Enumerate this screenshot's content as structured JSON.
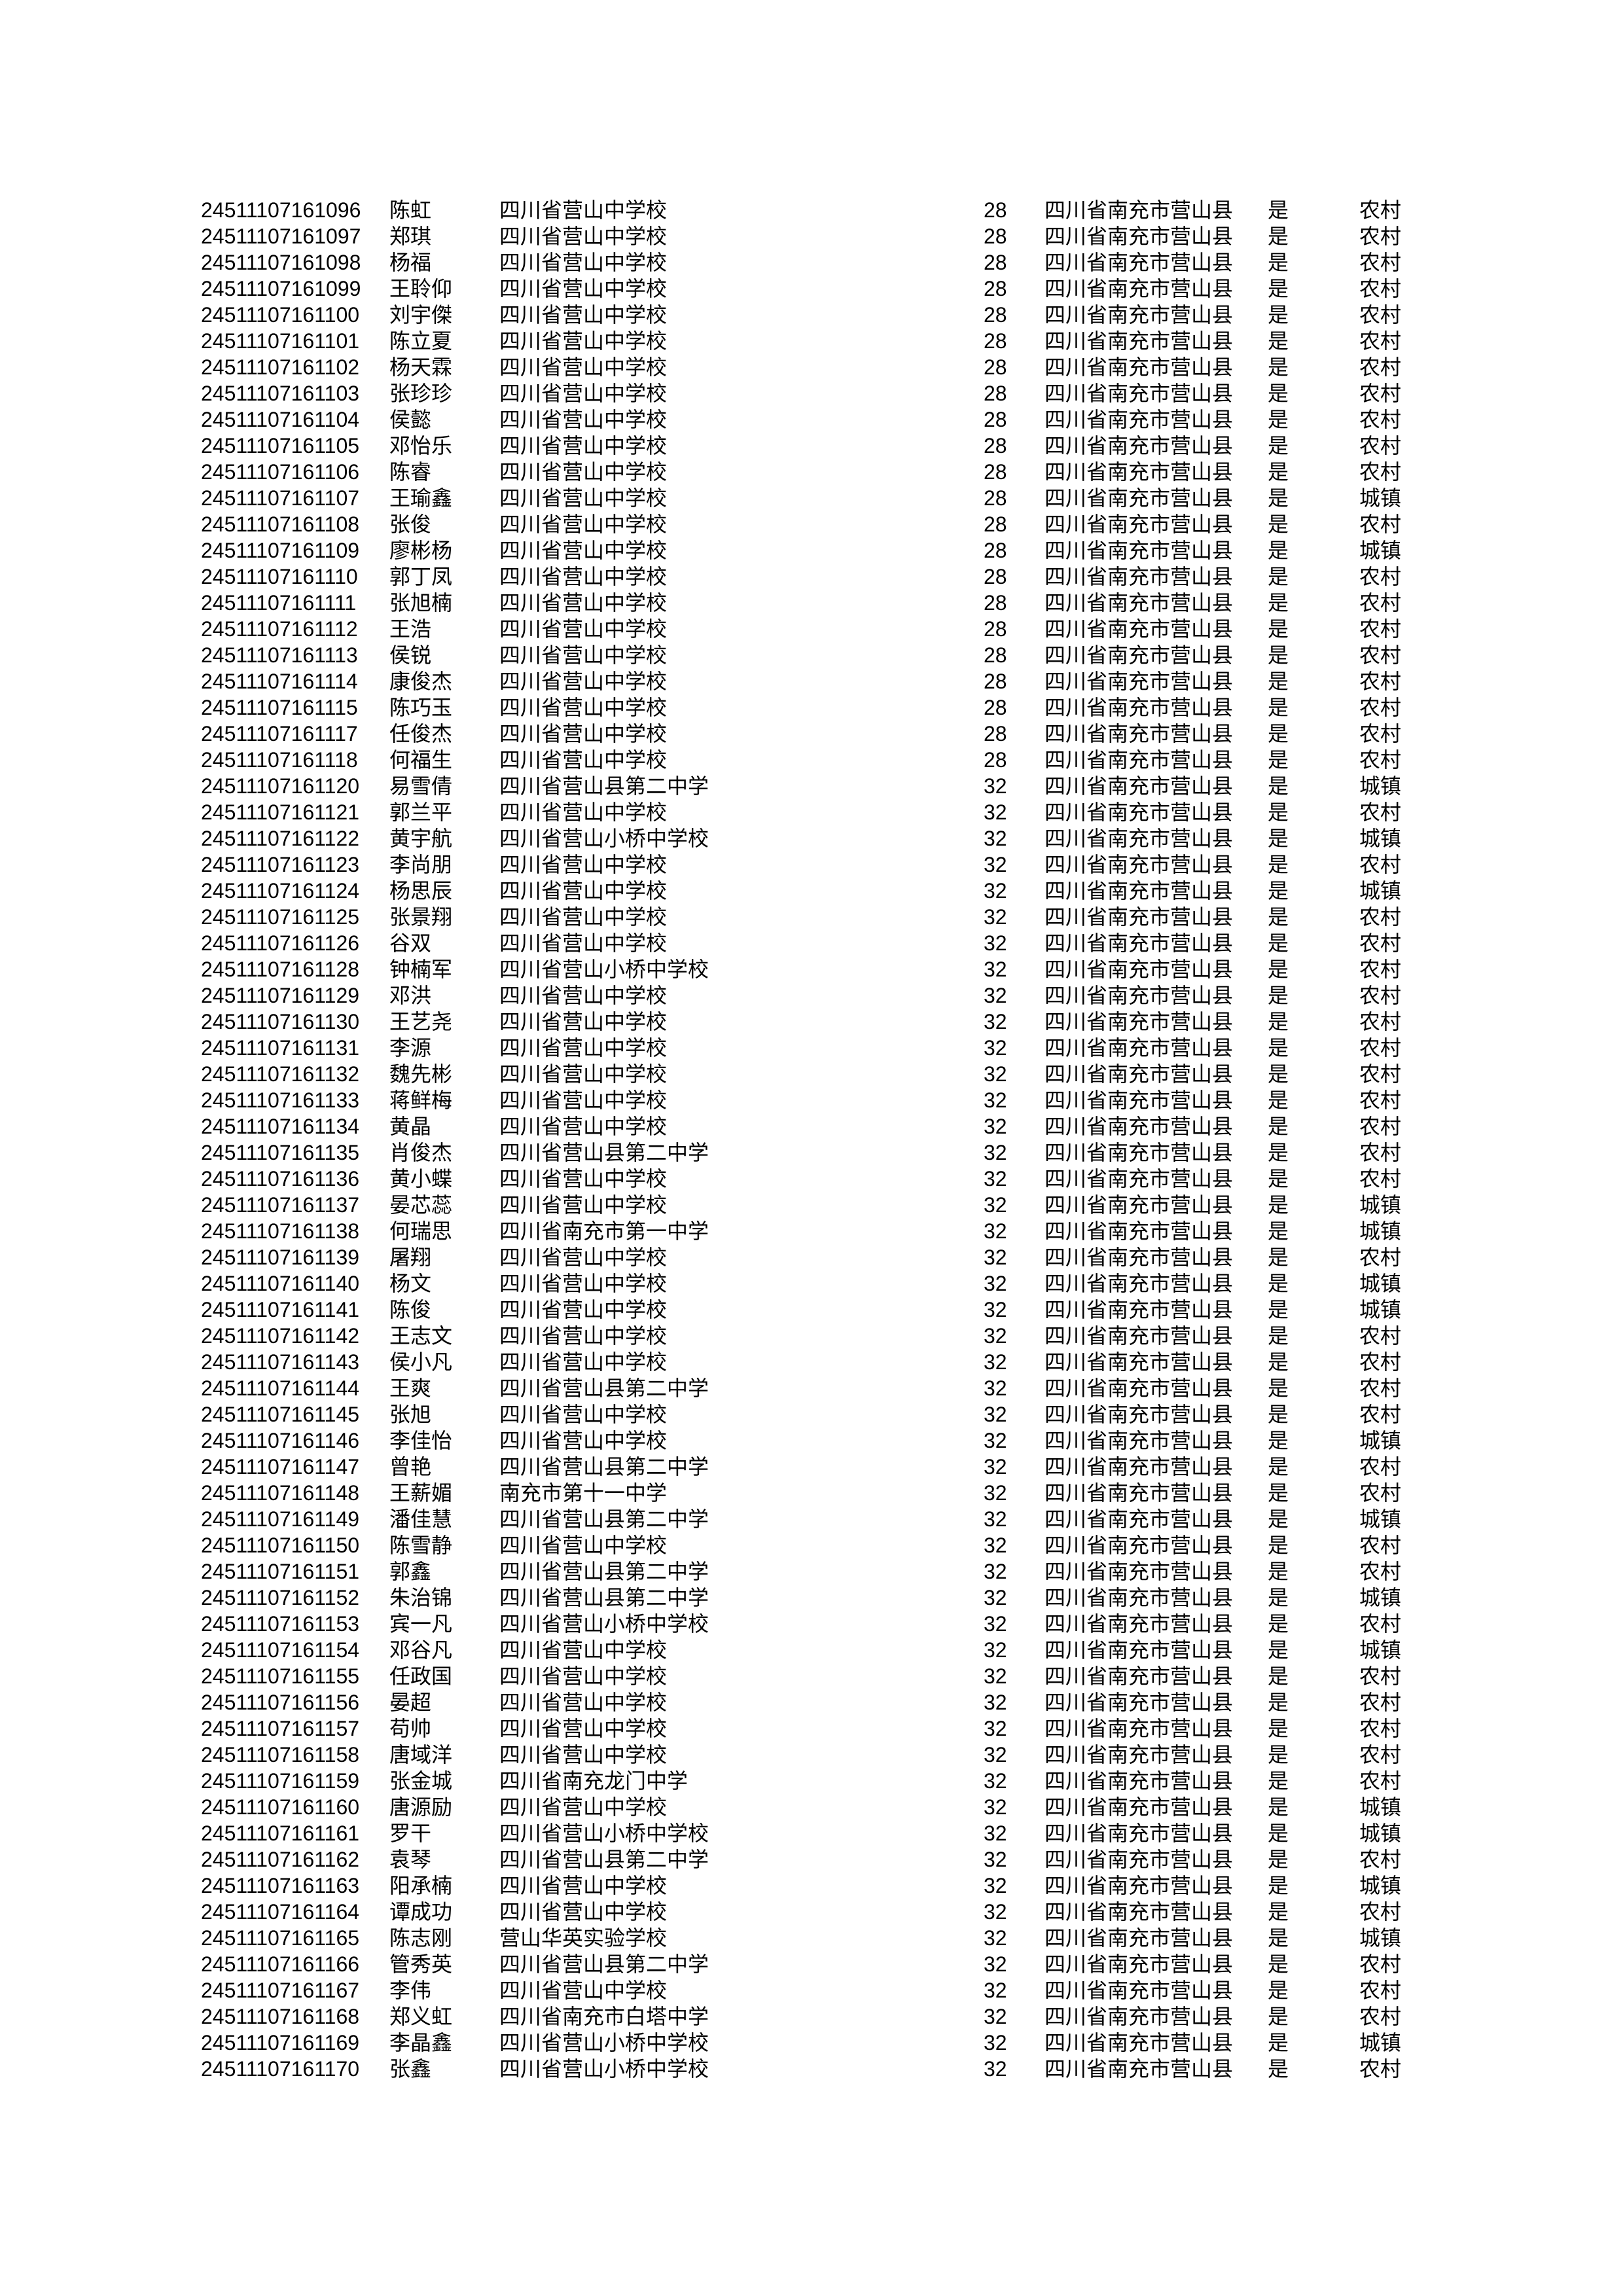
{
  "document": {
    "kind": "printed candidate roster page",
    "text_color": "#000000",
    "background_color": "#ffffff"
  },
  "table": {
    "repeated_values": {
      "district": "四川省南充市营山县",
      "flag": "是",
      "residence_rural": "农村",
      "residence_urban": "城镇"
    },
    "rows": [
      {
        "id": "24511107161096",
        "name": "陈虹",
        "school": "四川省营山中学校",
        "num": "28",
        "district": "四川省南充市营山县",
        "flag": "是",
        "type": "农村"
      },
      {
        "id": "24511107161097",
        "name": "郑琪",
        "school": "四川省营山中学校",
        "num": "28",
        "district": "四川省南充市营山县",
        "flag": "是",
        "type": "农村"
      },
      {
        "id": "24511107161098",
        "name": "杨福",
        "school": "四川省营山中学校",
        "num": "28",
        "district": "四川省南充市营山县",
        "flag": "是",
        "type": "农村"
      },
      {
        "id": "24511107161099",
        "name": "王聆仰",
        "school": "四川省营山中学校",
        "num": "28",
        "district": "四川省南充市营山县",
        "flag": "是",
        "type": "农村"
      },
      {
        "id": "24511107161100",
        "name": "刘宇傑",
        "school": "四川省营山中学校",
        "num": "28",
        "district": "四川省南充市营山县",
        "flag": "是",
        "type": "农村"
      },
      {
        "id": "24511107161101",
        "name": "陈立夏",
        "school": "四川省营山中学校",
        "num": "28",
        "district": "四川省南充市营山县",
        "flag": "是",
        "type": "农村"
      },
      {
        "id": "24511107161102",
        "name": "杨天霖",
        "school": "四川省营山中学校",
        "num": "28",
        "district": "四川省南充市营山县",
        "flag": "是",
        "type": "农村"
      },
      {
        "id": "24511107161103",
        "name": "张珍珍",
        "school": "四川省营山中学校",
        "num": "28",
        "district": "四川省南充市营山县",
        "flag": "是",
        "type": "农村"
      },
      {
        "id": "24511107161104",
        "name": "侯懿",
        "school": "四川省营山中学校",
        "num": "28",
        "district": "四川省南充市营山县",
        "flag": "是",
        "type": "农村"
      },
      {
        "id": "24511107161105",
        "name": "邓怡乐",
        "school": "四川省营山中学校",
        "num": "28",
        "district": "四川省南充市营山县",
        "flag": "是",
        "type": "农村"
      },
      {
        "id": "24511107161106",
        "name": "陈睿",
        "school": "四川省营山中学校",
        "num": "28",
        "district": "四川省南充市营山县",
        "flag": "是",
        "type": "农村"
      },
      {
        "id": "24511107161107",
        "name": "王瑜鑫",
        "school": "四川省营山中学校",
        "num": "28",
        "district": "四川省南充市营山县",
        "flag": "是",
        "type": "城镇"
      },
      {
        "id": "24511107161108",
        "name": "张俊",
        "school": "四川省营山中学校",
        "num": "28",
        "district": "四川省南充市营山县",
        "flag": "是",
        "type": "农村"
      },
      {
        "id": "24511107161109",
        "name": "廖彬杨",
        "school": "四川省营山中学校",
        "num": "28",
        "district": "四川省南充市营山县",
        "flag": "是",
        "type": "城镇"
      },
      {
        "id": "24511107161110",
        "name": "郭丁凤",
        "school": "四川省营山中学校",
        "num": "28",
        "district": "四川省南充市营山县",
        "flag": "是",
        "type": "农村"
      },
      {
        "id": "24511107161111",
        "name": "张旭楠",
        "school": "四川省营山中学校",
        "num": "28",
        "district": "四川省南充市营山县",
        "flag": "是",
        "type": "农村"
      },
      {
        "id": "24511107161112",
        "name": "王浩",
        "school": "四川省营山中学校",
        "num": "28",
        "district": "四川省南充市营山县",
        "flag": "是",
        "type": "农村"
      },
      {
        "id": "24511107161113",
        "name": "侯锐",
        "school": "四川省营山中学校",
        "num": "28",
        "district": "四川省南充市营山县",
        "flag": "是",
        "type": "农村"
      },
      {
        "id": "24511107161114",
        "name": "康俊杰",
        "school": "四川省营山中学校",
        "num": "28",
        "district": "四川省南充市营山县",
        "flag": "是",
        "type": "农村"
      },
      {
        "id": "24511107161115",
        "name": "陈巧玉",
        "school": "四川省营山中学校",
        "num": "28",
        "district": "四川省南充市营山县",
        "flag": "是",
        "type": "农村"
      },
      {
        "id": "24511107161117",
        "name": "任俊杰",
        "school": "四川省营山中学校",
        "num": "28",
        "district": "四川省南充市营山县",
        "flag": "是",
        "type": "农村"
      },
      {
        "id": "24511107161118",
        "name": "何福生",
        "school": "四川省营山中学校",
        "num": "28",
        "district": "四川省南充市营山县",
        "flag": "是",
        "type": "农村"
      },
      {
        "id": "24511107161120",
        "name": "易雪倩",
        "school": "四川省营山县第二中学",
        "num": "32",
        "district": "四川省南充市营山县",
        "flag": "是",
        "type": "城镇"
      },
      {
        "id": "24511107161121",
        "name": "郭兰平",
        "school": "四川省营山中学校",
        "num": "32",
        "district": "四川省南充市营山县",
        "flag": "是",
        "type": "农村"
      },
      {
        "id": "24511107161122",
        "name": "黄宇航",
        "school": "四川省营山小桥中学校",
        "num": "32",
        "district": "四川省南充市营山县",
        "flag": "是",
        "type": "城镇"
      },
      {
        "id": "24511107161123",
        "name": "李尚朋",
        "school": "四川省营山中学校",
        "num": "32",
        "district": "四川省南充市营山县",
        "flag": "是",
        "type": "农村"
      },
      {
        "id": "24511107161124",
        "name": "杨思辰",
        "school": "四川省营山中学校",
        "num": "32",
        "district": "四川省南充市营山县",
        "flag": "是",
        "type": "城镇"
      },
      {
        "id": "24511107161125",
        "name": "张景翔",
        "school": "四川省营山中学校",
        "num": "32",
        "district": "四川省南充市营山县",
        "flag": "是",
        "type": "农村"
      },
      {
        "id": "24511107161126",
        "name": "谷双",
        "school": "四川省营山中学校",
        "num": "32",
        "district": "四川省南充市营山县",
        "flag": "是",
        "type": "农村"
      },
      {
        "id": "24511107161128",
        "name": "钟楠军",
        "school": "四川省营山小桥中学校",
        "num": "32",
        "district": "四川省南充市营山县",
        "flag": "是",
        "type": "农村"
      },
      {
        "id": "24511107161129",
        "name": "邓洪",
        "school": "四川省营山中学校",
        "num": "32",
        "district": "四川省南充市营山县",
        "flag": "是",
        "type": "农村"
      },
      {
        "id": "24511107161130",
        "name": "王艺尧",
        "school": "四川省营山中学校",
        "num": "32",
        "district": "四川省南充市营山县",
        "flag": "是",
        "type": "农村"
      },
      {
        "id": "24511107161131",
        "name": "李源",
        "school": "四川省营山中学校",
        "num": "32",
        "district": "四川省南充市营山县",
        "flag": "是",
        "type": "农村"
      },
      {
        "id": "24511107161132",
        "name": "魏先彬",
        "school": "四川省营山中学校",
        "num": "32",
        "district": "四川省南充市营山县",
        "flag": "是",
        "type": "农村"
      },
      {
        "id": "24511107161133",
        "name": "蒋鲜梅",
        "school": "四川省营山中学校",
        "num": "32",
        "district": "四川省南充市营山县",
        "flag": "是",
        "type": "农村"
      },
      {
        "id": "24511107161134",
        "name": "黄晶",
        "school": "四川省营山中学校",
        "num": "32",
        "district": "四川省南充市营山县",
        "flag": "是",
        "type": "农村"
      },
      {
        "id": "24511107161135",
        "name": "肖俊杰",
        "school": "四川省营山县第二中学",
        "num": "32",
        "district": "四川省南充市营山县",
        "flag": "是",
        "type": "农村"
      },
      {
        "id": "24511107161136",
        "name": "黄小蝶",
        "school": "四川省营山中学校",
        "num": "32",
        "district": "四川省南充市营山县",
        "flag": "是",
        "type": "农村"
      },
      {
        "id": "24511107161137",
        "name": "晏芯蕊",
        "school": "四川省营山中学校",
        "num": "32",
        "district": "四川省南充市营山县",
        "flag": "是",
        "type": "城镇"
      },
      {
        "id": "24511107161138",
        "name": "何瑞思",
        "school": "四川省南充市第一中学",
        "num": "32",
        "district": "四川省南充市营山县",
        "flag": "是",
        "type": "城镇"
      },
      {
        "id": "24511107161139",
        "name": "屠翔",
        "school": "四川省营山中学校",
        "num": "32",
        "district": "四川省南充市营山县",
        "flag": "是",
        "type": "农村"
      },
      {
        "id": "24511107161140",
        "name": "杨文",
        "school": "四川省营山中学校",
        "num": "32",
        "district": "四川省南充市营山县",
        "flag": "是",
        "type": "城镇"
      },
      {
        "id": "24511107161141",
        "name": "陈俊",
        "school": "四川省营山中学校",
        "num": "32",
        "district": "四川省南充市营山县",
        "flag": "是",
        "type": "城镇"
      },
      {
        "id": "24511107161142",
        "name": "王志文",
        "school": "四川省营山中学校",
        "num": "32",
        "district": "四川省南充市营山县",
        "flag": "是",
        "type": "农村"
      },
      {
        "id": "24511107161143",
        "name": "侯小凡",
        "school": "四川省营山中学校",
        "num": "32",
        "district": "四川省南充市营山县",
        "flag": "是",
        "type": "农村"
      },
      {
        "id": "24511107161144",
        "name": "王爽",
        "school": "四川省营山县第二中学",
        "num": "32",
        "district": "四川省南充市营山县",
        "flag": "是",
        "type": "农村"
      },
      {
        "id": "24511107161145",
        "name": "张旭",
        "school": "四川省营山中学校",
        "num": "32",
        "district": "四川省南充市营山县",
        "flag": "是",
        "type": "农村"
      },
      {
        "id": "24511107161146",
        "name": "李佳怡",
        "school": "四川省营山中学校",
        "num": "32",
        "district": "四川省南充市营山县",
        "flag": "是",
        "type": "城镇"
      },
      {
        "id": "24511107161147",
        "name": "曾艳",
        "school": "四川省营山县第二中学",
        "num": "32",
        "district": "四川省南充市营山县",
        "flag": "是",
        "type": "农村"
      },
      {
        "id": "24511107161148",
        "name": "王薪媚",
        "school": "南充市第十一中学",
        "num": "32",
        "district": "四川省南充市营山县",
        "flag": "是",
        "type": "农村"
      },
      {
        "id": "24511107161149",
        "name": "潘佳慧",
        "school": "四川省营山县第二中学",
        "num": "32",
        "district": "四川省南充市营山县",
        "flag": "是",
        "type": "城镇"
      },
      {
        "id": "24511107161150",
        "name": "陈雪静",
        "school": "四川省营山中学校",
        "num": "32",
        "district": "四川省南充市营山县",
        "flag": "是",
        "type": "农村"
      },
      {
        "id": "24511107161151",
        "name": "郭鑫",
        "school": "四川省营山县第二中学",
        "num": "32",
        "district": "四川省南充市营山县",
        "flag": "是",
        "type": "农村"
      },
      {
        "id": "24511107161152",
        "name": "朱治锦",
        "school": "四川省营山县第二中学",
        "num": "32",
        "district": "四川省南充市营山县",
        "flag": "是",
        "type": "城镇"
      },
      {
        "id": "24511107161153",
        "name": "宾一凡",
        "school": "四川省营山小桥中学校",
        "num": "32",
        "district": "四川省南充市营山县",
        "flag": "是",
        "type": "农村"
      },
      {
        "id": "24511107161154",
        "name": "邓谷凡",
        "school": "四川省营山中学校",
        "num": "32",
        "district": "四川省南充市营山县",
        "flag": "是",
        "type": "城镇"
      },
      {
        "id": "24511107161155",
        "name": "任政国",
        "school": "四川省营山中学校",
        "num": "32",
        "district": "四川省南充市营山县",
        "flag": "是",
        "type": "农村"
      },
      {
        "id": "24511107161156",
        "name": "晏超",
        "school": "四川省营山中学校",
        "num": "32",
        "district": "四川省南充市营山县",
        "flag": "是",
        "type": "农村"
      },
      {
        "id": "24511107161157",
        "name": "苟帅",
        "school": "四川省营山中学校",
        "num": "32",
        "district": "四川省南充市营山县",
        "flag": "是",
        "type": "农村"
      },
      {
        "id": "24511107161158",
        "name": "唐域洋",
        "school": "四川省营山中学校",
        "num": "32",
        "district": "四川省南充市营山县",
        "flag": "是",
        "type": "农村"
      },
      {
        "id": "24511107161159",
        "name": "张金城",
        "school": "四川省南充龙门中学",
        "num": "32",
        "district": "四川省南充市营山县",
        "flag": "是",
        "type": "农村"
      },
      {
        "id": "24511107161160",
        "name": "唐源励",
        "school": "四川省营山中学校",
        "num": "32",
        "district": "四川省南充市营山县",
        "flag": "是",
        "type": "城镇"
      },
      {
        "id": "24511107161161",
        "name": "罗干",
        "school": "四川省营山小桥中学校",
        "num": "32",
        "district": "四川省南充市营山县",
        "flag": "是",
        "type": "城镇"
      },
      {
        "id": "24511107161162",
        "name": "袁琴",
        "school": "四川省营山县第二中学",
        "num": "32",
        "district": "四川省南充市营山县",
        "flag": "是",
        "type": "农村"
      },
      {
        "id": "24511107161163",
        "name": "阳承楠",
        "school": "四川省营山中学校",
        "num": "32",
        "district": "四川省南充市营山县",
        "flag": "是",
        "type": "城镇"
      },
      {
        "id": "24511107161164",
        "name": "谭成功",
        "school": "四川省营山中学校",
        "num": "32",
        "district": "四川省南充市营山县",
        "flag": "是",
        "type": "农村"
      },
      {
        "id": "24511107161165",
        "name": "陈志刚",
        "school": "营山华英实验学校",
        "num": "32",
        "district": "四川省南充市营山县",
        "flag": "是",
        "type": "城镇"
      },
      {
        "id": "24511107161166",
        "name": "管秀英",
        "school": "四川省营山县第二中学",
        "num": "32",
        "district": "四川省南充市营山县",
        "flag": "是",
        "type": "农村"
      },
      {
        "id": "24511107161167",
        "name": "李伟",
        "school": "四川省营山中学校",
        "num": "32",
        "district": "四川省南充市营山县",
        "flag": "是",
        "type": "农村"
      },
      {
        "id": "24511107161168",
        "name": "郑义虹",
        "school": "四川省南充市白塔中学",
        "num": "32",
        "district": "四川省南充市营山县",
        "flag": "是",
        "type": "农村"
      },
      {
        "id": "24511107161169",
        "name": "李晶鑫",
        "school": "四川省营山小桥中学校",
        "num": "32",
        "district": "四川省南充市营山县",
        "flag": "是",
        "type": "城镇"
      },
      {
        "id": "24511107161170",
        "name": "张鑫",
        "school": "四川省营山小桥中学校",
        "num": "32",
        "district": "四川省南充市营山县",
        "flag": "是",
        "type": "农村"
      }
    ]
  }
}
